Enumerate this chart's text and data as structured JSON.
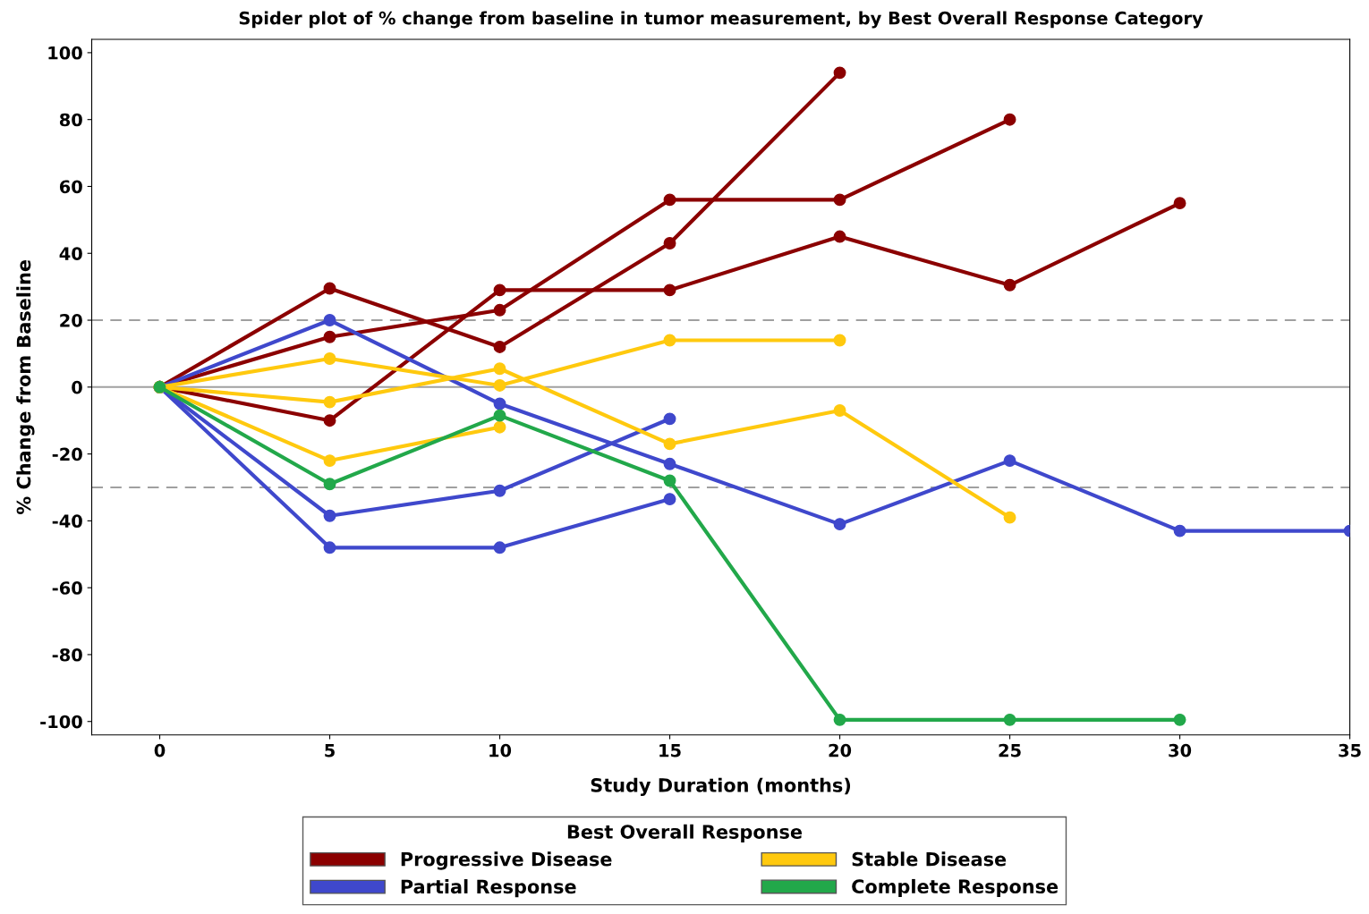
{
  "chart_data": {
    "type": "line",
    "title": "Spider plot of % change from baseline in tumor measurement, by Best Overall Response Category",
    "xlabel": "Study Duration (months)",
    "ylabel": "% Change from Baseline",
    "legend_title": "Best Overall Response",
    "legend": "bottom",
    "marker": "circle",
    "line_style": "solid",
    "grid": false,
    "xlim": [
      -2,
      35
    ],
    "xticks": [
      0,
      5,
      10,
      15,
      20,
      25,
      30,
      35
    ],
    "ylim": [
      -104,
      104
    ],
    "yticks": [
      -100,
      -80,
      -60,
      -40,
      -20,
      0,
      20,
      40,
      60,
      80,
      100
    ],
    "ref_lines": [
      {
        "axis": "y",
        "value": 20,
        "color": "#a0a0a0",
        "line_style": "dashed"
      },
      {
        "axis": "y",
        "value": -30,
        "color": "#a0a0a0",
        "line_style": "dashed"
      },
      {
        "axis": "y",
        "value": 0,
        "color": "#a0a0a0",
        "line_style": "solid"
      }
    ],
    "series": [
      {
        "name": "Progressive Disease",
        "color": "#8b0000",
        "x": [
          0,
          5,
          10,
          15,
          20,
          25
        ],
        "values": [
          0,
          15,
          23,
          56,
          56,
          80
        ]
      },
      {
        "color": "#8b0000",
        "x": [
          0,
          5,
          10,
          15,
          20
        ],
        "values": [
          0,
          29.5,
          12,
          43,
          94
        ]
      },
      {
        "color": "#8b0000",
        "x": [
          0,
          5,
          10,
          15,
          20,
          25,
          30
        ],
        "values": [
          0,
          -10,
          29,
          29,
          45,
          30.5,
          55
        ]
      },
      {
        "name": "Partial Response",
        "color": "#3f48cc",
        "x": [
          0,
          5,
          10,
          15,
          20,
          25,
          30,
          35
        ],
        "values": [
          0,
          20,
          -5,
          -23,
          -41,
          -22,
          -43,
          -43
        ]
      },
      {
        "color": "#3f48cc",
        "x": [
          0,
          5,
          10,
          15
        ],
        "values": [
          0,
          -38.5,
          -31,
          -9.5
        ]
      },
      {
        "color": "#3f48cc",
        "x": [
          0,
          5,
          10,
          15
        ],
        "values": [
          0,
          -48,
          -48,
          -33.5
        ]
      },
      {
        "name": "Stable Disease",
        "color": "#ffc90e",
        "x": [
          0,
          5,
          10,
          15,
          20
        ],
        "values": [
          0,
          8.5,
          0.5,
          14,
          14
        ]
      },
      {
        "color": "#ffc90e",
        "x": [
          0,
          5,
          10,
          15,
          20,
          25
        ],
        "values": [
          0,
          -4.5,
          5.5,
          -17,
          -7,
          -39
        ]
      },
      {
        "color": "#ffc90e",
        "x": [
          0,
          5,
          10
        ],
        "values": [
          0,
          -22,
          -12
        ]
      },
      {
        "name": "Complete Response",
        "color": "#22a84a",
        "x": [
          0,
          5,
          10,
          15,
          20,
          25,
          30
        ],
        "values": [
          0,
          -29,
          -8.5,
          -28,
          -99.5,
          -99.5,
          -99.5
        ]
      }
    ]
  }
}
